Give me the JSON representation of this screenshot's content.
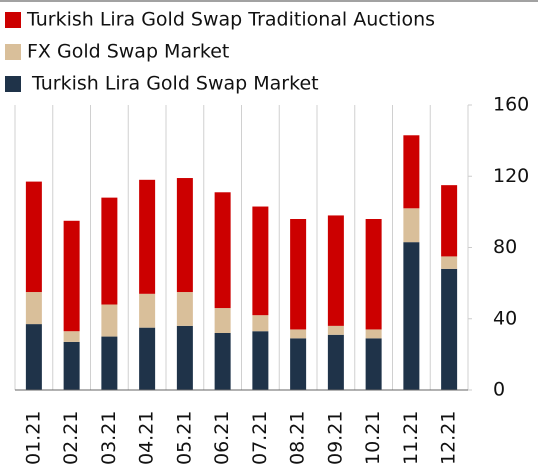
{
  "chart_data": {
    "type": "stacked_bar",
    "categories": [
      "01.21",
      "02.21",
      "03.21",
      "04.21",
      "05.21",
      "06.21",
      "07.21",
      "08.21",
      "09.21",
      "10.21",
      "11.21",
      "12.21"
    ],
    "series": [
      {
        "name": "Turkish Lira Gold Swap Market",
        "color": "#1f3349",
        "values": [
          37,
          27,
          30,
          35,
          36,
          32,
          33,
          29,
          31,
          29,
          83,
          68
        ]
      },
      {
        "name": "FX Gold Swap Market",
        "color": "#d9bf9a",
        "values": [
          18,
          6,
          18,
          19,
          19,
          14,
          9,
          5,
          5,
          5,
          19,
          7
        ]
      },
      {
        "name": "Turkish Lira Gold Swap Traditional Auctions",
        "color": "#cc0000",
        "values": [
          62,
          62,
          60,
          64,
          64,
          65,
          61,
          62,
          62,
          62,
          41,
          40
        ]
      }
    ],
    "ylim": [
      0,
      160
    ],
    "yticks": [
      0,
      40,
      80,
      120,
      160
    ],
    "grid": true
  }
}
